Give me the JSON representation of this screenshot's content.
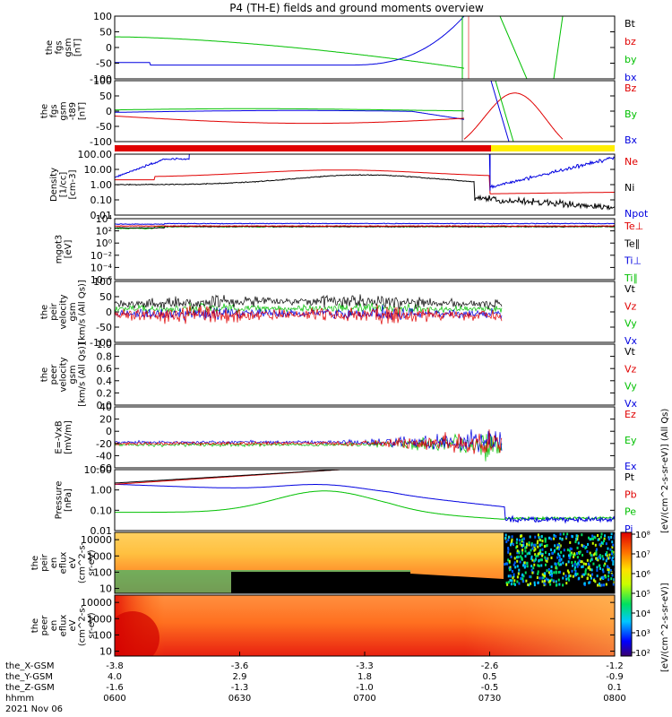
{
  "title": "P4 (TH-E) fields and ground moments overview",
  "chart_data": {
    "type": "line",
    "panels": [
      {
        "id": "fgs-gsm",
        "ylabel": [
          "the",
          "fgs",
          "gsm",
          "[nT]"
        ],
        "yticks": [
          "100",
          "50",
          "0",
          "-50",
          "-100"
        ],
        "ylim": [
          -100,
          100
        ],
        "legend": [
          {
            "name": "Bt",
            "color": "#000000"
          },
          {
            "name": "bz",
            "color": "#e00000"
          },
          {
            "name": "by",
            "color": "#00c000"
          },
          {
            "name": "bx",
            "color": "#0000e0"
          }
        ]
      },
      {
        "id": "fgs-gsm-t89",
        "ylabel": [
          "the",
          "fgs",
          "gsm",
          "-t89",
          "[nT]"
        ],
        "yticks": [
          "100",
          "50",
          "0",
          "-50",
          "-100"
        ],
        "ylim": [
          -120,
          120
        ],
        "legend": [
          {
            "name": "Bz",
            "color": "#e00000"
          },
          {
            "name": "By",
            "color": "#00c000"
          },
          {
            "name": "Bx",
            "color": "#0000e0"
          }
        ]
      },
      {
        "id": "density",
        "ylabel": [
          "Density",
          "[1/cc]",
          "[cm-3]"
        ],
        "yticks": [
          "100.00",
          "10.00",
          "1.00",
          "0.10",
          "0.01"
        ],
        "log": true,
        "legend": [
          {
            "name": "Ne",
            "color": "#e00000"
          },
          {
            "name": "Ni",
            "color": "#000000"
          },
          {
            "name": "Npot",
            "color": "#0000e0"
          }
        ]
      },
      {
        "id": "temperature",
        "ylabel": [
          "mgot3",
          "[eV]"
        ],
        "yticks": [
          "10⁴",
          "10²",
          "10⁰",
          "10⁻²",
          "10⁻⁴",
          "10⁻⁶"
        ],
        "log": true,
        "legend": [
          {
            "name": "Te⊥",
            "color": "#e00000"
          },
          {
            "name": "Te∥",
            "color": "#000000"
          },
          {
            "name": "Ti⊥",
            "color": "#0000e0"
          },
          {
            "name": "Ti∥",
            "color": "#00c000"
          }
        ]
      },
      {
        "id": "peir-velocity",
        "ylabel": [
          "the",
          "peir",
          "velocity",
          "gsm",
          "[km/s (All Qs)]"
        ],
        "yticks": [
          "100",
          "50",
          "0",
          "-50",
          "-100"
        ],
        "ylim": [
          -100,
          100
        ],
        "legend": [
          {
            "name": "Vt",
            "color": "#000000"
          },
          {
            "name": "Vz",
            "color": "#e00000"
          },
          {
            "name": "Vy",
            "color": "#00c000"
          },
          {
            "name": "Vx",
            "color": "#0000e0"
          }
        ]
      },
      {
        "id": "peer-velocity",
        "ylabel": [
          "the",
          "peer",
          "velocity",
          "gsm",
          "[km/s (All Qs)]"
        ],
        "yticks": [
          "1.0",
          "0.8",
          "0.6",
          "0.4",
          "0.2",
          "0.0"
        ],
        "ylim": [
          0,
          1
        ],
        "legend": [
          {
            "name": "Vt",
            "color": "#000000"
          },
          {
            "name": "Vz",
            "color": "#e00000"
          },
          {
            "name": "Vy",
            "color": "#00c000"
          },
          {
            "name": "Vx",
            "color": "#0000e0"
          }
        ]
      },
      {
        "id": "efield",
        "ylabel": [
          "E=-VxB",
          "[mV/m]"
        ],
        "yticks": [
          "40",
          "20",
          "0",
          "-20",
          "-40",
          "-60"
        ],
        "ylim": [
          -70,
          40
        ],
        "legend": [
          {
            "name": "Ez",
            "color": "#e00000"
          },
          {
            "name": "Ey",
            "color": "#00c000"
          },
          {
            "name": "Ex",
            "color": "#0000e0"
          }
        ]
      },
      {
        "id": "pressure",
        "ylabel": [
          "Pressure",
          "[nPa]"
        ],
        "yticks": [
          "10.00",
          "1.00",
          "0.10",
          "0.01"
        ],
        "log": true,
        "legend": [
          {
            "name": "Pt",
            "color": "#000000"
          },
          {
            "name": "Pb",
            "color": "#e00000"
          },
          {
            "name": "Pe",
            "color": "#00c000"
          },
          {
            "name": "Pi",
            "color": "#0000e0"
          }
        ]
      },
      {
        "id": "peir-eflux",
        "ylabel": [
          "the",
          "peir",
          "en",
          "eflux",
          "eV",
          "(cm^2-s-",
          "sr-eV)"
        ],
        "yticks": [
          "10000",
          "1000",
          "100",
          "10"
        ],
        "type": "heatmap"
      },
      {
        "id": "peer-eflux",
        "ylabel": [
          "the",
          "peer",
          "en",
          "eflux",
          "eV",
          "(cm^2-s-",
          "sr-eV)"
        ],
        "yticks": [
          "10000",
          "1000",
          "100",
          "10"
        ],
        "type": "heatmap"
      }
    ],
    "colorbar": {
      "ticks": [
        "10⁸",
        "10⁷",
        "10⁶",
        "10⁵",
        "10⁴",
        "10³",
        "10²"
      ],
      "label": "[eV/(cm^2-s-sr-eV)]",
      "label2": "[eV/(cm^2-s-sr-eV)] (All Qs)"
    },
    "xaxis": {
      "rows": [
        {
          "label": "the_X-GSM",
          "values": [
            "-3.8",
            "-3.6",
            "-3.3",
            "-2.6",
            "-1.2"
          ]
        },
        {
          "label": "the_Y-GSM",
          "values": [
            "4.0",
            "2.9",
            "1.8",
            "0.5",
            "-0.9"
          ]
        },
        {
          "label": "the_Z-GSM",
          "values": [
            "-1.6",
            "-1.3",
            "-1.0",
            "-0.5",
            "0.1"
          ]
        },
        {
          "label": "hhmm",
          "values": [
            "0600",
            "0630",
            "0700",
            "0730",
            "0800"
          ]
        }
      ],
      "date": "2021 Nov 06",
      "time_range": [
        360,
        480
      ]
    }
  }
}
